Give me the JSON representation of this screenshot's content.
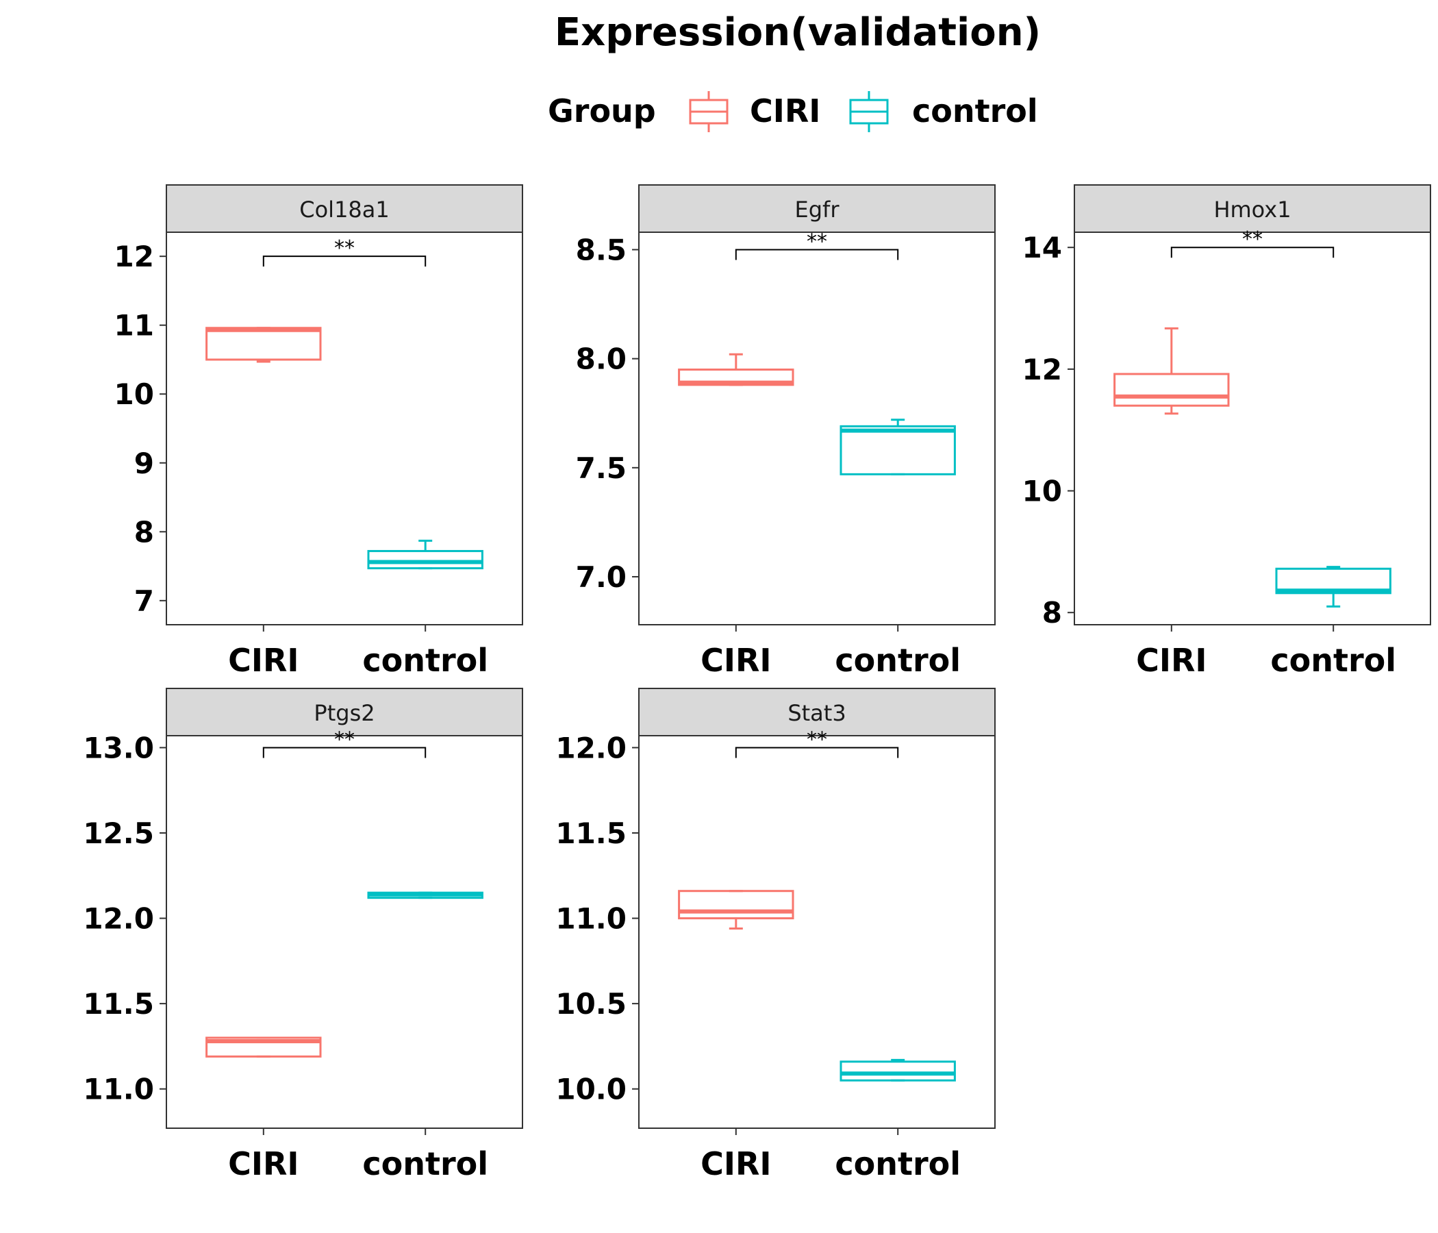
{
  "chart_data": {
    "type": "box",
    "title": "Expression(validation)",
    "legend": {
      "title": "Group",
      "position": "top",
      "entries": [
        {
          "label": "CIRI",
          "color": "#F8766D"
        },
        {
          "label": "control",
          "color": "#00BFC4"
        }
      ]
    },
    "categories": [
      "CIRI",
      "control"
    ],
    "panels": [
      {
        "name": "Col18a1",
        "ylim": [
          6.65,
          12.35
        ],
        "yticks": [
          7,
          8,
          9,
          10,
          11,
          12
        ],
        "tick_labels": [
          "7",
          "8",
          "9",
          "10",
          "11",
          "12"
        ],
        "significance": {
          "label": "**",
          "y": 12.0
        },
        "boxes": [
          {
            "group": "CIRI",
            "min": 10.47,
            "q1": 10.5,
            "median": 10.93,
            "q3": 10.96,
            "max": 10.96
          },
          {
            "group": "control",
            "min": 7.47,
            "q1": 7.47,
            "median": 7.56,
            "q3": 7.72,
            "max": 7.87
          }
        ]
      },
      {
        "name": "Egfr",
        "ylim": [
          6.78,
          8.58
        ],
        "yticks": [
          7.0,
          7.5,
          8.0,
          8.5
        ],
        "tick_labels": [
          "7.0",
          "7.5",
          "8.0",
          "8.5"
        ],
        "significance": {
          "label": "**",
          "y": 8.5
        },
        "boxes": [
          {
            "group": "CIRI",
            "min": 7.88,
            "q1": 7.88,
            "median": 7.89,
            "q3": 7.95,
            "max": 8.02
          },
          {
            "group": "control",
            "min": 7.47,
            "q1": 7.47,
            "median": 7.67,
            "q3": 7.69,
            "max": 7.72
          }
        ]
      },
      {
        "name": "Hmox1",
        "ylim": [
          7.8,
          14.25
        ],
        "yticks": [
          8,
          10,
          12,
          14
        ],
        "tick_labels": [
          "8",
          "10",
          "12",
          "14"
        ],
        "significance": {
          "label": "**",
          "y": 14.0
        },
        "boxes": [
          {
            "group": "CIRI",
            "min": 11.27,
            "q1": 11.4,
            "median": 11.55,
            "q3": 11.92,
            "max": 12.67
          },
          {
            "group": "control",
            "min": 8.1,
            "q1": 8.32,
            "median": 8.36,
            "q3": 8.72,
            "max": 8.75
          }
        ]
      },
      {
        "name": "Ptgs2",
        "ylim": [
          10.77,
          13.07
        ],
        "yticks": [
          11.0,
          11.5,
          12.0,
          12.5,
          13.0
        ],
        "tick_labels": [
          "11.0",
          "11.5",
          "12.0",
          "12.5",
          "13.0"
        ],
        "significance": {
          "label": "**",
          "y": 13.0
        },
        "boxes": [
          {
            "group": "CIRI",
            "min": 11.19,
            "q1": 11.19,
            "median": 11.28,
            "q3": 11.3,
            "max": 11.3
          },
          {
            "group": "control",
            "min": 12.12,
            "q1": 12.12,
            "median": 12.14,
            "q3": 12.15,
            "max": 12.15
          }
        ]
      },
      {
        "name": "Stat3",
        "ylim": [
          9.77,
          12.07
        ],
        "yticks": [
          10.0,
          10.5,
          11.0,
          11.5,
          12.0
        ],
        "tick_labels": [
          "10.0",
          "10.5",
          "11.0",
          "11.5",
          "12.0"
        ],
        "significance": {
          "label": "**",
          "y": 12.0
        },
        "boxes": [
          {
            "group": "CIRI",
            "min": 10.94,
            "q1": 11.0,
            "median": 11.04,
            "q3": 11.16,
            "max": 11.16
          },
          {
            "group": "control",
            "min": 10.05,
            "q1": 10.05,
            "median": 10.09,
            "q3": 10.16,
            "max": 10.17
          }
        ]
      }
    ]
  }
}
